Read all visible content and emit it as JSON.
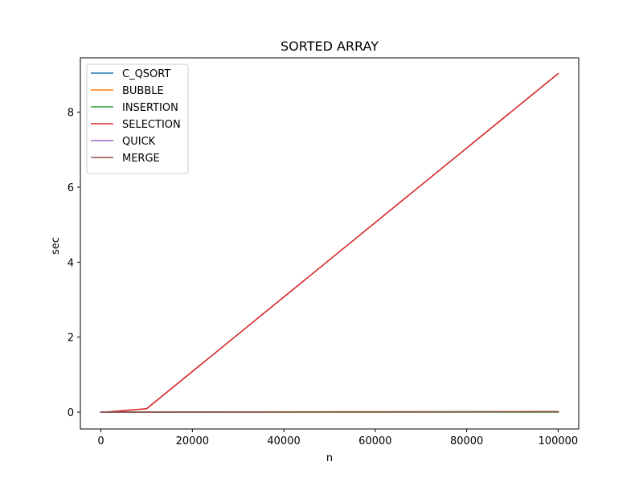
{
  "chart_data": {
    "type": "line",
    "title": "SORTED ARRAY",
    "xlabel": "n",
    "ylabel": "sec",
    "x": [
      10,
      100,
      1000,
      10000,
      100000
    ],
    "xlim": [
      -4490,
      104500
    ],
    "ylim": [
      -0.45,
      9.45
    ],
    "xticks": [
      0,
      20000,
      40000,
      60000,
      80000,
      100000
    ],
    "yticks": [
      0,
      2,
      4,
      6,
      8
    ],
    "grid": false,
    "legend_position": "upper left",
    "series": [
      {
        "name": "C_QSORT",
        "color": "#1f77b4",
        "values": [
          0,
          0,
          0,
          0.0005,
          0.006
        ]
      },
      {
        "name": "BUBBLE",
        "color": "#ff7f0e",
        "values": [
          0,
          0,
          0,
          0.0001,
          0.001
        ]
      },
      {
        "name": "INSERTION",
        "color": "#2ca02c",
        "values": [
          0,
          0,
          0,
          0.0001,
          0.001
        ]
      },
      {
        "name": "SELECTION",
        "color": "#d62728",
        "values": [
          0,
          0.0001,
          0.001,
          0.09,
          9.03
        ]
      },
      {
        "name": "QUICK",
        "color": "#9467bd",
        "values": [
          0,
          0,
          0,
          0.001,
          0.012
        ]
      },
      {
        "name": "MERGE",
        "color": "#8c564b",
        "values": [
          0,
          0,
          0,
          0.001,
          0.015
        ]
      }
    ]
  }
}
